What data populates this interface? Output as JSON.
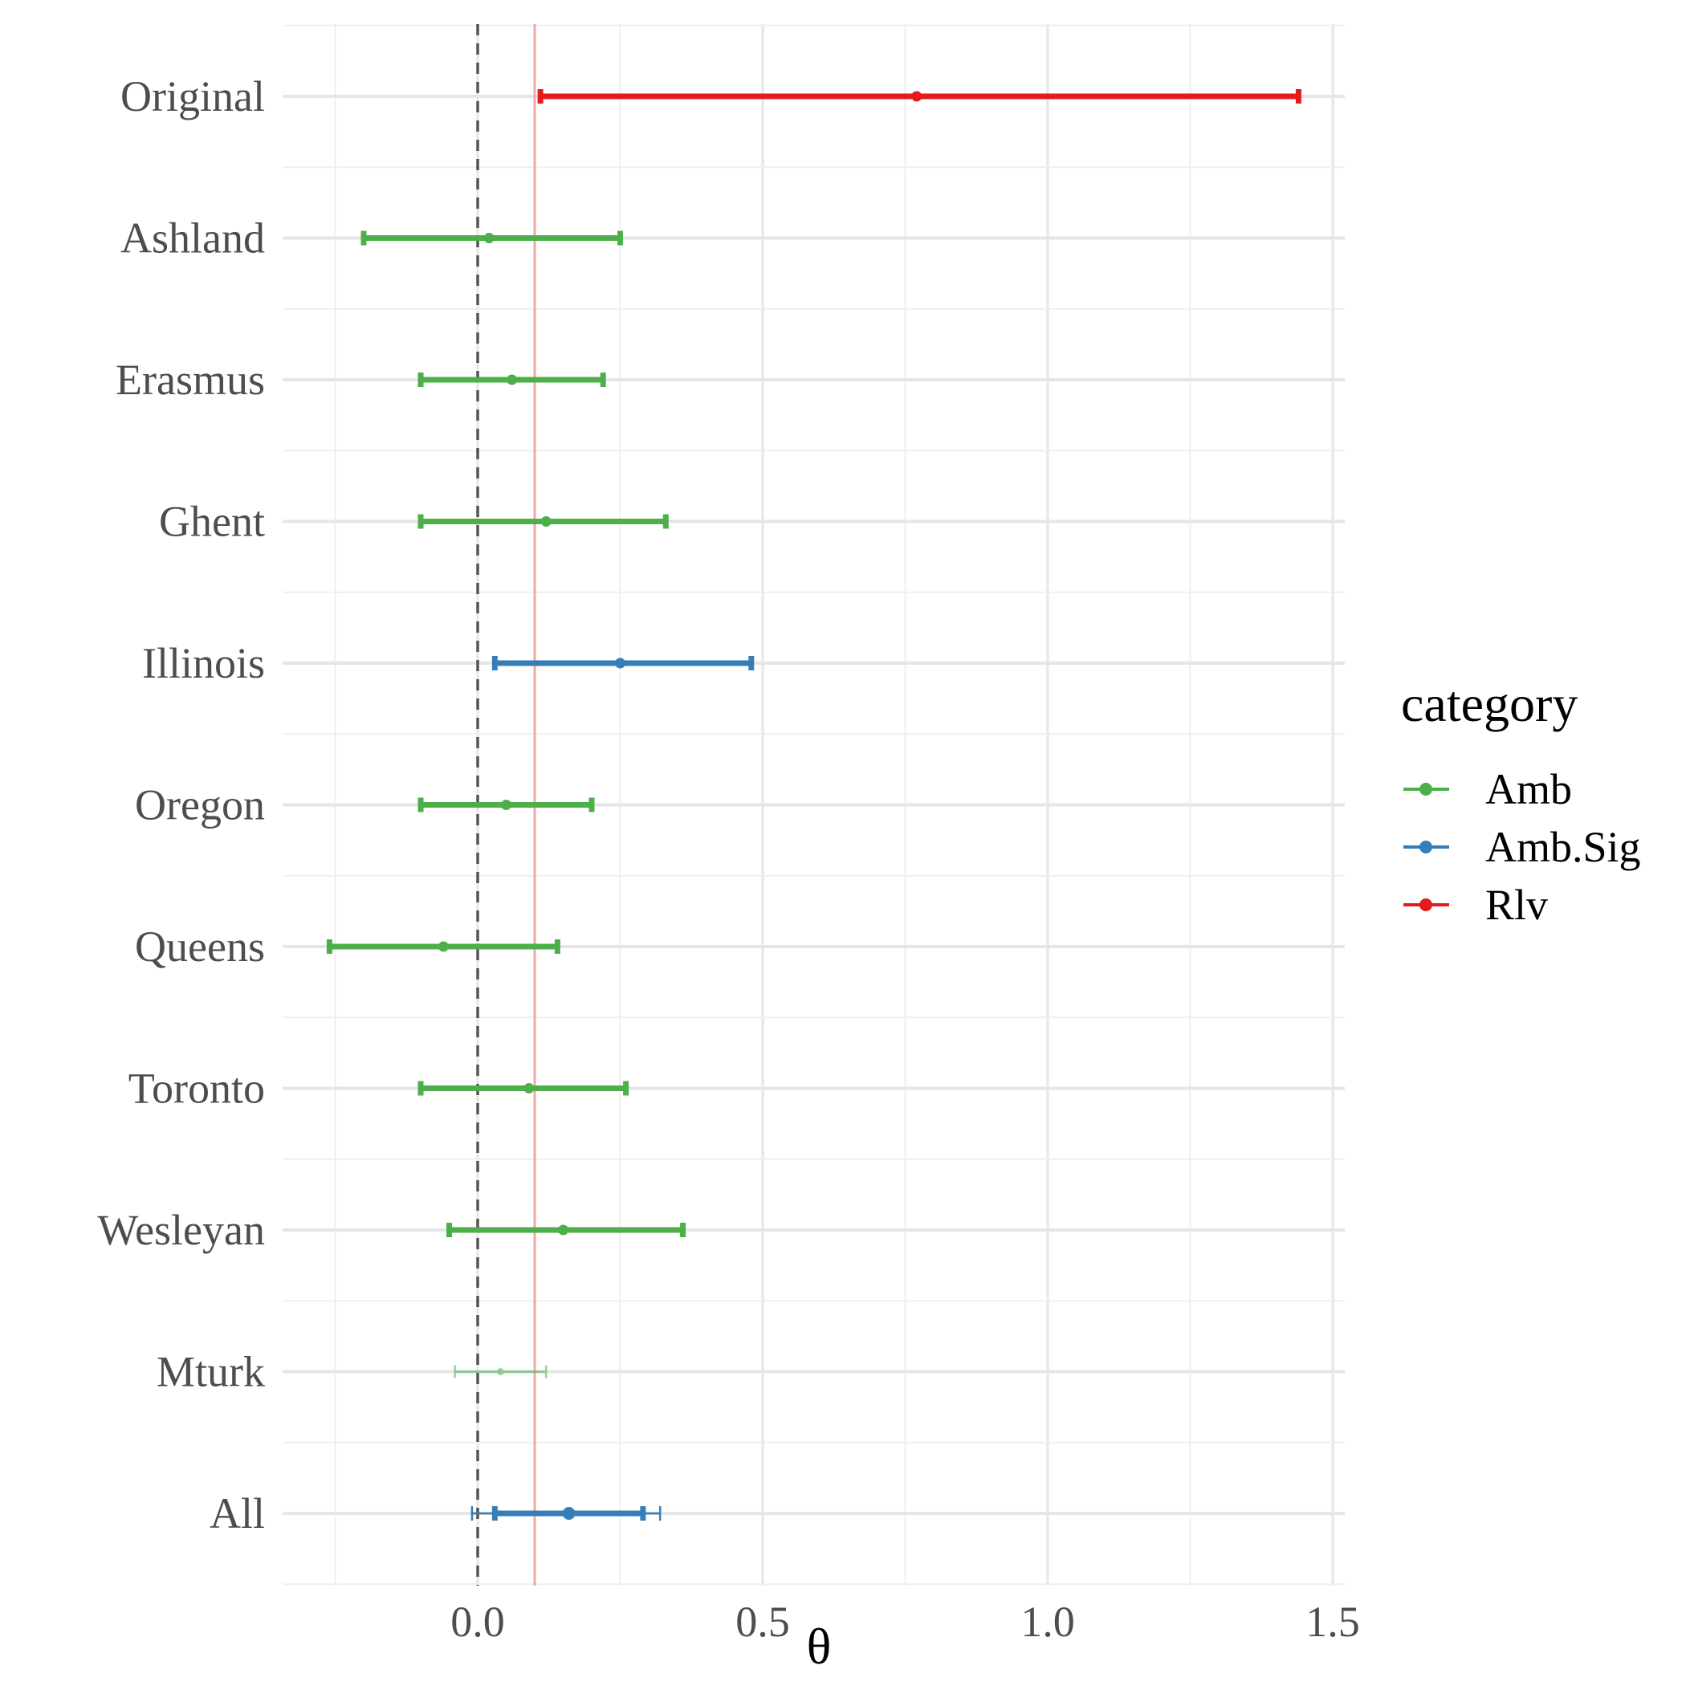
{
  "chart_data": {
    "type": "scatter",
    "xlabel": "θ",
    "ylabel": "",
    "xlim": [
      -0.34,
      1.58
    ],
    "x_ticks": [
      {
        "value": 0.0,
        "label": "0.0"
      },
      {
        "value": 0.5,
        "label": "0.5"
      },
      {
        "value": 1.0,
        "label": "1.0"
      },
      {
        "value": 1.5,
        "label": "1.5"
      }
    ],
    "x_minor_ticks": [
      -0.25,
      0.25,
      0.75,
      1.25
    ],
    "grid": true,
    "reference_lines": [
      {
        "name": "zero",
        "x": 0.0,
        "style": "dashed",
        "color": "#555555"
      },
      {
        "name": "original-lower-bound",
        "x": 0.1,
        "style": "solid",
        "color": "#f7a6a6"
      }
    ],
    "legend": {
      "title": "category",
      "position": "right",
      "entries": [
        {
          "label": "Amb",
          "color": "#4daf4a"
        },
        {
          "label": "Amb.Sig",
          "color": "#377eb8"
        },
        {
          "label": "Rlv",
          "color": "#e41a1c"
        }
      ]
    },
    "categories": [
      "Original",
      "Ashland",
      "Erasmus",
      "Ghent",
      "Illinois",
      "Oregon",
      "Queens",
      "Toronto",
      "Wesleyan",
      "Mturk",
      "All"
    ],
    "series": [
      {
        "label": "Original",
        "category": "Rlv",
        "estimate": 0.77,
        "lower": 0.11,
        "upper": 1.44
      },
      {
        "label": "Ashland",
        "category": "Amb",
        "estimate": 0.02,
        "lower": -0.2,
        "upper": 0.25
      },
      {
        "label": "Erasmus",
        "category": "Amb",
        "estimate": 0.06,
        "lower": -0.1,
        "upper": 0.22
      },
      {
        "label": "Ghent",
        "category": "Amb",
        "estimate": 0.12,
        "lower": -0.1,
        "upper": 0.33
      },
      {
        "label": "Illinois",
        "category": "Amb.Sig",
        "estimate": 0.25,
        "lower": 0.03,
        "upper": 0.48
      },
      {
        "label": "Oregon",
        "category": "Amb",
        "estimate": 0.05,
        "lower": -0.1,
        "upper": 0.2
      },
      {
        "label": "Queens",
        "category": "Amb",
        "estimate": -0.06,
        "lower": -0.26,
        "upper": 0.14
      },
      {
        "label": "Toronto",
        "category": "Amb",
        "estimate": 0.09,
        "lower": -0.1,
        "upper": 0.26
      },
      {
        "label": "Wesleyan",
        "category": "Amb",
        "estimate": 0.15,
        "lower": -0.05,
        "upper": 0.36
      },
      {
        "label": "Mturk",
        "category": "Amb",
        "estimate": 0.04,
        "lower": -0.04,
        "upper": 0.12,
        "faded": true
      },
      {
        "label": "All",
        "category": "Amb.Sig",
        "estimate": 0.16,
        "lower": 0.03,
        "upper": 0.29,
        "outer_lower": -0.01,
        "outer_upper": 0.32
      }
    ]
  }
}
